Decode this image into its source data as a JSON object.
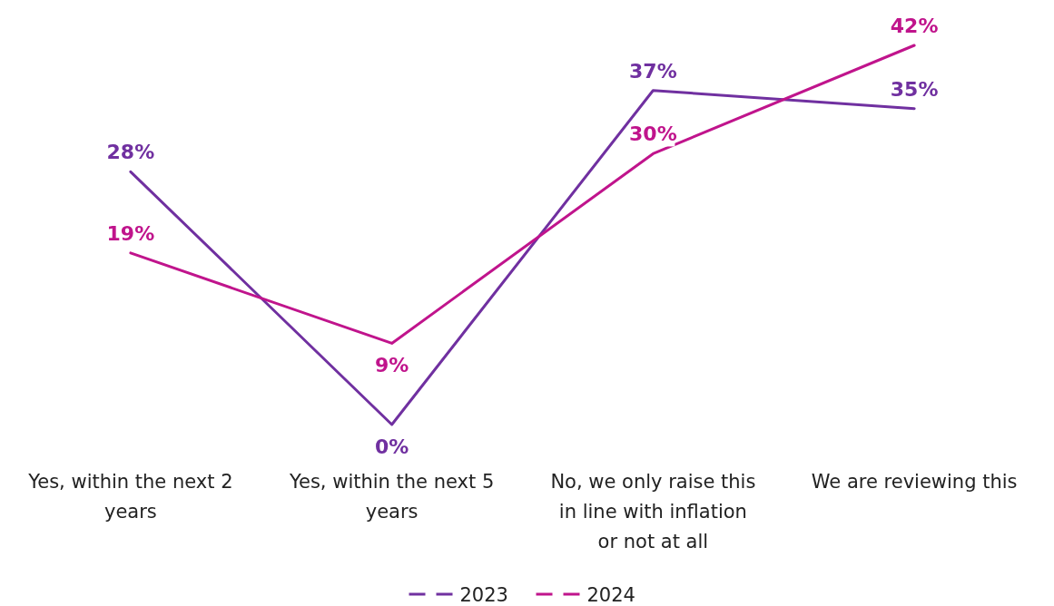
{
  "chart_data": {
    "type": "line",
    "categories": [
      "Yes, within the next 2 years",
      "Yes, within the next 5 years",
      "No, we only raise this in line with inflation or not at all",
      "We are reviewing this"
    ],
    "series": [
      {
        "name": "2023",
        "color": "#7030a0",
        "values": [
          28,
          0,
          37,
          35
        ],
        "value_labels": [
          "28%",
          "0%",
          "37%",
          "35%"
        ]
      },
      {
        "name": "2024",
        "color": "#c0148c",
        "values": [
          19,
          9,
          30,
          42
        ],
        "value_labels": [
          "19%",
          "9%",
          "30%",
          "42%"
        ]
      }
    ],
    "legend": "bottom",
    "marker": "none",
    "line_style": "solid",
    "grid": false
  }
}
